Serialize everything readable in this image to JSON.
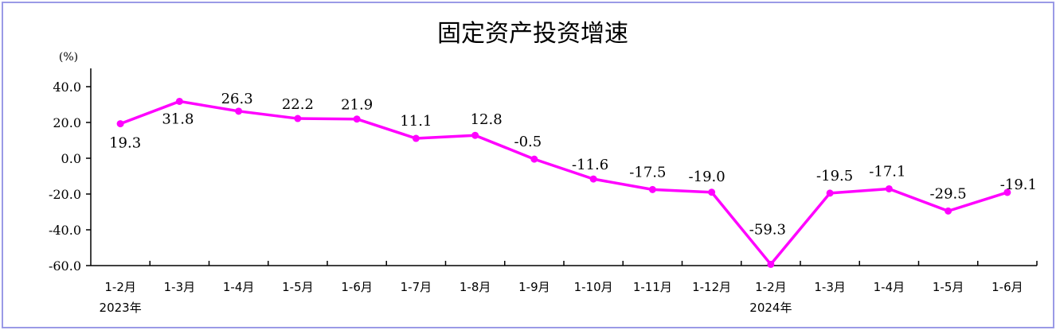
{
  "chart_data": {
    "type": "line",
    "title": "固定资产投资增速",
    "unit_label": "(%)",
    "categories": [
      "1-2月",
      "1-3月",
      "1-4月",
      "1-5月",
      "1-6月",
      "1-7月",
      "1-8月",
      "1-9月",
      "1-10月",
      "1-11月",
      "1-12月",
      "1-2月",
      "1-3月",
      "1-4月",
      "1-5月",
      "1-6月"
    ],
    "year_labels": [
      {
        "index": 0,
        "text": "2023年"
      },
      {
        "index": 11,
        "text": "2024年"
      }
    ],
    "series": [
      {
        "color": "#ff00ff",
        "values": [
          19.3,
          31.8,
          26.3,
          22.2,
          21.9,
          11.1,
          12.8,
          -0.5,
          -11.6,
          -17.5,
          -19.0,
          -59.3,
          -19.5,
          -17.1,
          -29.5,
          -19.1
        ],
        "labels": [
          "19.3",
          "31.8",
          "26.3",
          "22.2",
          "21.9",
          "11.1",
          "12.8",
          "-0.5",
          "-11.6",
          "-17.5",
          "-19.0",
          "-59.3",
          "-19.5",
          "-17.1",
          "-29.5",
          "-19.1"
        ]
      }
    ],
    "ylim": [
      -60,
      40
    ],
    "yticks": [
      40,
      20,
      0,
      -20,
      -40,
      -60
    ],
    "ytick_labels": [
      "40.0",
      "20.0",
      "0.0",
      "-20.0",
      "-40.0",
      "-60.0"
    ],
    "grid": false,
    "legend": "none"
  }
}
